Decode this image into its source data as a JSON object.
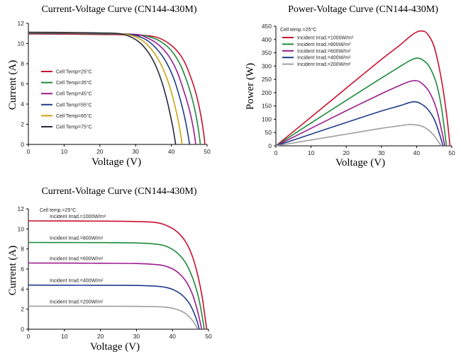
{
  "chart_data": [
    {
      "type": "line",
      "title": "Current-Voltage Curve (CN144-430M)",
      "xlabel": "Voltage (V)",
      "ylabel": "Current (A)",
      "xlim": [
        0,
        50
      ],
      "ylim": [
        0,
        12
      ],
      "xticks": [
        0,
        10,
        20,
        30,
        40,
        50
      ],
      "yticks": [
        0,
        2,
        4,
        6,
        8,
        10,
        12
      ],
      "grid": false,
      "legend": "center-left",
      "series": [
        {
          "name": "Cell Temp=25°C",
          "color": "#c8102e",
          "points": [
            [
              0,
              10.95
            ],
            [
              10,
              10.93
            ],
            [
              20,
              10.9
            ],
            [
              30,
              10.85
            ],
            [
              35,
              10.7
            ],
            [
              38,
              10.3
            ],
            [
              41,
              9.5
            ],
            [
              43.5,
              8.3
            ],
            [
              45.5,
              6.6
            ],
            [
              47,
              4.9
            ],
            [
              48.2,
              3.0
            ],
            [
              49,
              1.2
            ],
            [
              49.4,
              0
            ]
          ]
        },
        {
          "name": "Cell Temp=35°C",
          "color": "#1e8a3c",
          "points": [
            [
              0,
              11.0
            ],
            [
              10,
              10.98
            ],
            [
              20,
              10.95
            ],
            [
              30,
              10.9
            ],
            [
              34,
              10.65
            ],
            [
              37,
              10.2
            ],
            [
              40,
              9.3
            ],
            [
              42.5,
              7.9
            ],
            [
              44.5,
              6.1
            ],
            [
              46,
              4.3
            ],
            [
              47.1,
              2.5
            ],
            [
              47.8,
              0.9
            ],
            [
              48.1,
              0
            ]
          ]
        },
        {
          "name": "Cell Temp=45°C",
          "color": "#9b1b8e",
          "points": [
            [
              0,
              11.03
            ],
            [
              10,
              11.01
            ],
            [
              20,
              10.98
            ],
            [
              30,
              10.9
            ],
            [
              33,
              10.6
            ],
            [
              36,
              10.0
            ],
            [
              39,
              8.9
            ],
            [
              41.5,
              7.3
            ],
            [
              43.5,
              5.3
            ],
            [
              45,
              3.5
            ],
            [
              46,
              1.9
            ],
            [
              46.6,
              0.6
            ],
            [
              46.8,
              0
            ]
          ]
        },
        {
          "name": "Cell Temp=55°C",
          "color": "#1f3b8c",
          "points": [
            [
              0,
              11.06
            ],
            [
              10,
              11.04
            ],
            [
              20,
              11.0
            ],
            [
              28,
              10.92
            ],
            [
              32,
              10.55
            ],
            [
              35,
              9.8
            ],
            [
              38,
              8.5
            ],
            [
              40.5,
              6.7
            ],
            [
              42.3,
              4.7
            ],
            [
              43.6,
              2.9
            ],
            [
              44.5,
              1.3
            ],
            [
              45.1,
              0
            ]
          ]
        },
        {
          "name": "Cell Temp=65°C",
          "color": "#c8a415",
          "points": [
            [
              0,
              11.09
            ],
            [
              10,
              11.07
            ],
            [
              20,
              11.03
            ],
            [
              27,
              10.93
            ],
            [
              31,
              10.5
            ],
            [
              34,
              9.6
            ],
            [
              37,
              8.0
            ],
            [
              39.3,
              6.0
            ],
            [
              40.8,
              4.1
            ],
            [
              41.9,
              2.4
            ],
            [
              42.6,
              1.0
            ],
            [
              43.0,
              0
            ]
          ]
        },
        {
          "name": "Cell Temp=75°C",
          "color": "#252a3a",
          "points": [
            [
              0,
              11.12
            ],
            [
              10,
              11.1
            ],
            [
              20,
              11.05
            ],
            [
              26,
              10.95
            ],
            [
              30,
              10.4
            ],
            [
              33,
              9.4
            ],
            [
              35.5,
              7.9
            ],
            [
              37.6,
              5.9
            ],
            [
              39.1,
              3.9
            ],
            [
              40.2,
              2.1
            ],
            [
              40.9,
              0.7
            ],
            [
              41.2,
              0
            ]
          ]
        }
      ]
    },
    {
      "type": "line",
      "title": "Power-Voltage Curve (CN144-430M)",
      "xlabel": "Voltage (V)",
      "ylabel": "Power (W)",
      "xlim": [
        0,
        50
      ],
      "ylim": [
        0,
        450
      ],
      "xticks": [
        0,
        10,
        20,
        30,
        40,
        50
      ],
      "yticks": [
        0,
        50,
        100,
        150,
        200,
        250,
        300,
        350,
        400,
        450
      ],
      "grid": false,
      "legend": "top-left",
      "note": "Cell temp.=25°C",
      "series": [
        {
          "name": "Incident Irrad.=1000W/m²",
          "color": "#c8102e",
          "points": [
            [
              0,
              0
            ],
            [
              10,
              108
            ],
            [
              20,
              217
            ],
            [
              30,
              325
            ],
            [
              35,
              376
            ],
            [
              38,
              410
            ],
            [
              40,
              428
            ],
            [
              41.5,
              432
            ],
            [
              43,
              422
            ],
            [
              45,
              372
            ],
            [
              47,
              254
            ],
            [
              48.5,
              120
            ],
            [
              49.5,
              0
            ]
          ]
        },
        {
          "name": "Incident Irrad.=800W/m²",
          "color": "#1e8a3c",
          "points": [
            [
              0,
              0
            ],
            [
              10,
              86
            ],
            [
              20,
              171
            ],
            [
              30,
              255
            ],
            [
              35,
              296
            ],
            [
              38,
              320
            ],
            [
              40,
              330
            ],
            [
              41.5,
              325
            ],
            [
              43.5,
              300
            ],
            [
              45.5,
              240
            ],
            [
              47,
              150
            ],
            [
              48.5,
              0
            ]
          ]
        },
        {
          "name": "Incident Irrad.=600W/m²",
          "color": "#9b1b8e",
          "points": [
            [
              0,
              0
            ],
            [
              10,
              66
            ],
            [
              20,
              132
            ],
            [
              30,
              196
            ],
            [
              35,
              226
            ],
            [
              38,
              242
            ],
            [
              40,
              245
            ],
            [
              41.5,
              235
            ],
            [
              43.5,
              205
            ],
            [
              45.5,
              145
            ],
            [
              47,
              65
            ],
            [
              48,
              0
            ]
          ]
        },
        {
          "name": "Incident Irrad.=400W/m²",
          "color": "#1f3b8c",
          "points": [
            [
              0,
              0
            ],
            [
              10,
              44
            ],
            [
              20,
              88
            ],
            [
              30,
              131
            ],
            [
              35,
              150
            ],
            [
              38,
              163
            ],
            [
              39.5,
              166
            ],
            [
              41,
              160
            ],
            [
              43,
              140
            ],
            [
              45,
              100
            ],
            [
              46.5,
              45
            ],
            [
              47.5,
              0
            ]
          ]
        },
        {
          "name": "Incident Irrad.=200W/m²",
          "color": "#9e9e9e",
          "points": [
            [
              0,
              0
            ],
            [
              10,
              22
            ],
            [
              20,
              44
            ],
            [
              30,
              66
            ],
            [
              35,
              75
            ],
            [
              37.5,
              80
            ],
            [
              39,
              80
            ],
            [
              41,
              76
            ],
            [
              43,
              63
            ],
            [
              45,
              38
            ],
            [
              46.2,
              15
            ],
            [
              47,
              0
            ]
          ]
        }
      ]
    },
    {
      "type": "line",
      "title": "Current-Voltage Curve (CN144-430M)",
      "xlabel": "Voltage (V)",
      "ylabel": "Current (A)",
      "xlim": [
        0,
        50
      ],
      "ylim": [
        0,
        12
      ],
      "xticks": [
        0,
        10,
        20,
        30,
        40,
        50
      ],
      "yticks": [
        0,
        2,
        4,
        6,
        8,
        10,
        12
      ],
      "grid": false,
      "legend": "inline",
      "note": "Cell temp.=25°C",
      "series": [
        {
          "name": "Incident Irrad.=1000W/m²",
          "color": "#c8102e",
          "points": [
            [
              0,
              10.8
            ],
            [
              10,
              10.79
            ],
            [
              20,
              10.78
            ],
            [
              30,
              10.74
            ],
            [
              35,
              10.65
            ],
            [
              38,
              10.4
            ],
            [
              41,
              9.8
            ],
            [
              43.5,
              8.8
            ],
            [
              45.5,
              7.3
            ],
            [
              47,
              5.4
            ],
            [
              48.2,
              3.3
            ],
            [
              49,
              1.3
            ],
            [
              49.5,
              0
            ]
          ]
        },
        {
          "name": "Incident Irrad.=800W/m²",
          "color": "#1e8a3c",
          "points": [
            [
              0,
              8.65
            ],
            [
              10,
              8.64
            ],
            [
              20,
              8.63
            ],
            [
              30,
              8.6
            ],
            [
              35,
              8.5
            ],
            [
              38,
              8.3
            ],
            [
              41,
              7.7
            ],
            [
              43.5,
              6.7
            ],
            [
              45.5,
              5.2
            ],
            [
              47,
              3.5
            ],
            [
              48,
              1.8
            ],
            [
              48.6,
              0.5
            ],
            [
              48.8,
              0
            ]
          ]
        },
        {
          "name": "Incident Irrad.=600W/m²",
          "color": "#9b1b8e",
          "points": [
            [
              0,
              6.6
            ],
            [
              10,
              6.59
            ],
            [
              20,
              6.58
            ],
            [
              30,
              6.55
            ],
            [
              35,
              6.46
            ],
            [
              38,
              6.3
            ],
            [
              41,
              5.8
            ],
            [
              43.5,
              4.9
            ],
            [
              45.3,
              3.7
            ],
            [
              46.6,
              2.3
            ],
            [
              47.5,
              1.0
            ],
            [
              48.1,
              0
            ]
          ]
        },
        {
          "name": "Incident Irrad.=400W/m²",
          "color": "#1f3b8c",
          "points": [
            [
              0,
              4.4
            ],
            [
              10,
              4.39
            ],
            [
              20,
              4.38
            ],
            [
              30,
              4.36
            ],
            [
              35,
              4.3
            ],
            [
              38,
              4.18
            ],
            [
              40.5,
              3.9
            ],
            [
              43,
              3.3
            ],
            [
              44.8,
              2.5
            ],
            [
              46,
              1.6
            ],
            [
              46.9,
              0.7
            ],
            [
              47.4,
              0
            ]
          ]
        },
        {
          "name": "Incident Irrad.=200W/m²",
          "color": "#9e9e9e",
          "points": [
            [
              0,
              2.3
            ],
            [
              10,
              2.3
            ],
            [
              20,
              2.29
            ],
            [
              30,
              2.28
            ],
            [
              35,
              2.25
            ],
            [
              38,
              2.2
            ],
            [
              40.5,
              2.05
            ],
            [
              42.5,
              1.8
            ],
            [
              44.2,
              1.4
            ],
            [
              45.5,
              0.9
            ],
            [
              46.4,
              0.4
            ],
            [
              47,
              0
            ]
          ]
        }
      ]
    }
  ]
}
